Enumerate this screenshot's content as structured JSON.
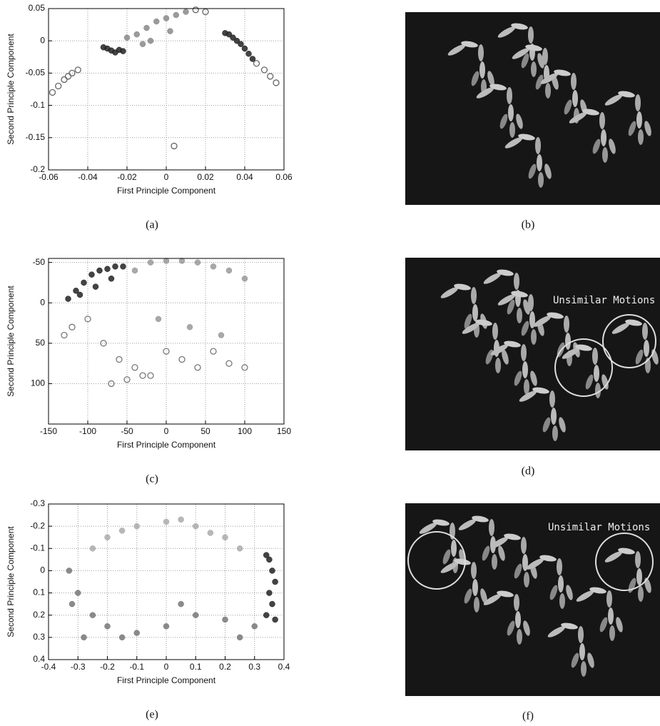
{
  "chart_data": [
    {
      "type": "scatter",
      "caption": "(a)",
      "x_label": "First Principle Component",
      "y_label": "Second Principle Component",
      "xlim": [
        -0.06,
        0.06
      ],
      "xticks": [
        -0.06,
        -0.04,
        -0.02,
        0,
        0.02,
        0.04,
        0.06
      ],
      "ylim": [
        -0.2,
        0.05
      ],
      "yticks": [
        -0.2,
        -0.15,
        -0.1,
        -0.05,
        0,
        0.05
      ],
      "grid": true,
      "series": [
        {
          "color": "#222222",
          "marker": "filled",
          "x": [
            -0.032,
            -0.03,
            -0.028,
            -0.026,
            -0.024,
            -0.022,
            0.03,
            0.032,
            0.034,
            0.036,
            0.038,
            0.04,
            0.042,
            0.044
          ],
          "values": [
            -0.01,
            -0.012,
            -0.015,
            -0.018,
            -0.014,
            -0.016,
            0.012,
            0.01,
            0.005,
            0,
            -0.005,
            -0.012,
            -0.02,
            -0.028
          ]
        },
        {
          "color": "#888888",
          "marker": "filled",
          "x": [
            -0.02,
            -0.015,
            -0.01,
            -0.005,
            0,
            0.005,
            0.01,
            -0.012,
            -0.008,
            0.002
          ],
          "values": [
            0.005,
            0.01,
            0.02,
            0.03,
            0.035,
            0.04,
            0.045,
            -0.005,
            0,
            0.015
          ]
        },
        {
          "color": "#666666",
          "marker": "open",
          "x": [
            -0.058,
            -0.055,
            -0.052,
            -0.05,
            -0.048,
            -0.045,
            0.046,
            0.05,
            0.053,
            0.056,
            0.004,
            0.02,
            0.015
          ],
          "values": [
            -0.08,
            -0.07,
            -0.06,
            -0.055,
            -0.05,
            -0.045,
            -0.035,
            -0.045,
            -0.055,
            -0.065,
            -0.163,
            0.045,
            0.048
          ]
        }
      ]
    },
    {
      "type": "scatter",
      "caption": "(c)",
      "x_label": "First Principle Component",
      "y_label": "Second Principle Component",
      "xlim": [
        -150,
        150
      ],
      "xticks": [
        -150,
        -100,
        -50,
        0,
        50,
        100,
        150
      ],
      "ylim": [
        150,
        -55
      ],
      "yticks": [
        -50,
        0,
        50,
        100
      ],
      "grid": true,
      "series": [
        {
          "color": "#777777",
          "marker": "open",
          "x": [
            -130,
            -120,
            -100,
            -80,
            -60,
            -40,
            -20,
            0,
            20,
            40,
            60,
            80,
            100,
            -70,
            -50,
            -30
          ],
          "values": [
            40,
            30,
            20,
            50,
            70,
            80,
            90,
            60,
            70,
            80,
            60,
            75,
            80,
            100,
            95,
            90
          ]
        },
        {
          "color": "#999999",
          "marker": "filled",
          "x": [
            -40,
            -20,
            0,
            20,
            40,
            60,
            80,
            100,
            -10,
            30,
            70
          ],
          "values": [
            -40,
            -50,
            -52,
            -52,
            -50,
            -45,
            -40,
            -30,
            20,
            30,
            40
          ]
        },
        {
          "color": "#222222",
          "marker": "filled",
          "x": [
            -125,
            -115,
            -105,
            -95,
            -85,
            -75,
            -65,
            -55,
            -110,
            -90,
            -70
          ],
          "values": [
            -5,
            -15,
            -25,
            -35,
            -40,
            -42,
            -45,
            -45,
            -10,
            -20,
            -30
          ]
        }
      ]
    },
    {
      "type": "scatter",
      "caption": "(e)",
      "x_label": "First Principle Component",
      "y_label": "Second Principle Component",
      "xlim": [
        -0.4,
        0.4
      ],
      "xticks": [
        -0.4,
        -0.3,
        -0.2,
        -0.1,
        0,
        0.1,
        0.2,
        0.3,
        0.4
      ],
      "ylim": [
        0.4,
        -0.3
      ],
      "yticks": [
        -0.3,
        -0.2,
        -0.1,
        0,
        0.1,
        0.2,
        0.3,
        0.4
      ],
      "grid": true,
      "series": [
        {
          "color": "#aaaaaa",
          "marker": "filled",
          "x": [
            -0.2,
            -0.1,
            0,
            0.05,
            0.1,
            0.2,
            -0.25,
            -0.15,
            0.15,
            0.25
          ],
          "values": [
            -0.15,
            -0.2,
            -0.22,
            -0.23,
            -0.2,
            -0.15,
            -0.1,
            -0.18,
            -0.17,
            -0.1
          ]
        },
        {
          "color": "#777777",
          "marker": "filled",
          "x": [
            -0.33,
            -0.3,
            -0.25,
            -0.2,
            -0.1,
            0,
            0.1,
            0.2,
            0.3,
            -0.32,
            -0.28,
            -0.15,
            0.05,
            0.25
          ],
          "values": [
            0,
            0.1,
            0.2,
            0.25,
            0.28,
            0.25,
            0.2,
            0.22,
            0.25,
            0.15,
            0.3,
            0.3,
            0.15,
            0.3
          ]
        },
        {
          "color": "#222222",
          "marker": "filled",
          "x": [
            0.34,
            0.35,
            0.36,
            0.37,
            0.35,
            0.36,
            0.34,
            0.37
          ],
          "values": [
            -0.07,
            -0.05,
            0,
            0.05,
            0.1,
            0.15,
            0.2,
            0.22
          ]
        }
      ]
    }
  ],
  "images": [
    {
      "caption": "(b)"
    },
    {
      "caption": "(d)",
      "annotation": "Unsimilar Motions"
    },
    {
      "caption": "(f)",
      "annotation": "Unsimilar Motions"
    }
  ]
}
